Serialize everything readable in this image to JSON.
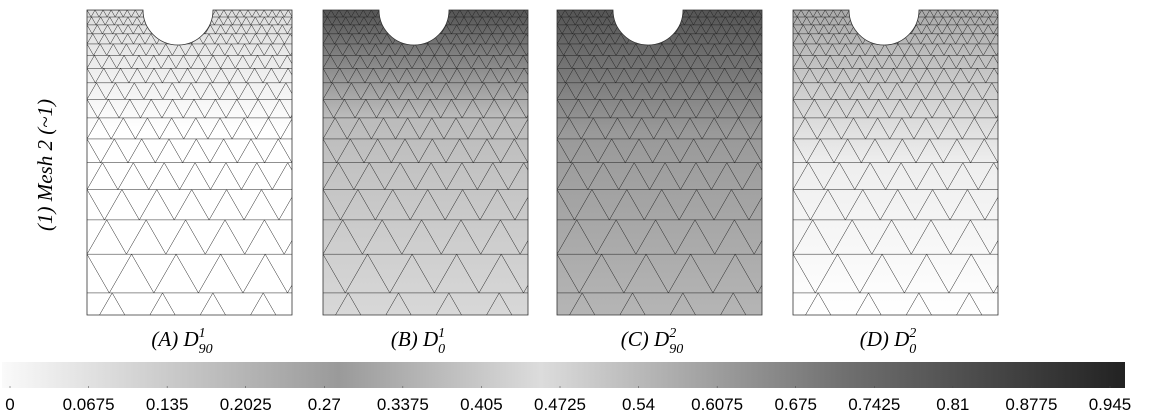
{
  "row_label": "(1) Mesh 2 (~1)",
  "panels": [
    {
      "label": "(A)",
      "symbol": "D",
      "sup": "1",
      "sub": "90"
    },
    {
      "label": "(B)",
      "symbol": "D",
      "sup": "1",
      "sub": "0"
    },
    {
      "label": "(C)",
      "symbol": "D",
      "sup": "2",
      "sub": "90"
    },
    {
      "label": "(D)",
      "symbol": "D",
      "sup": "2",
      "sub": "0"
    }
  ],
  "colorbar": {
    "ticks": [
      0,
      0.0675,
      0.135,
      0.2025,
      0.27,
      0.3375,
      0.405,
      0.4725,
      0.54,
      0.6075,
      0.675,
      0.7425,
      0.81,
      0.8775,
      0.945
    ]
  }
}
